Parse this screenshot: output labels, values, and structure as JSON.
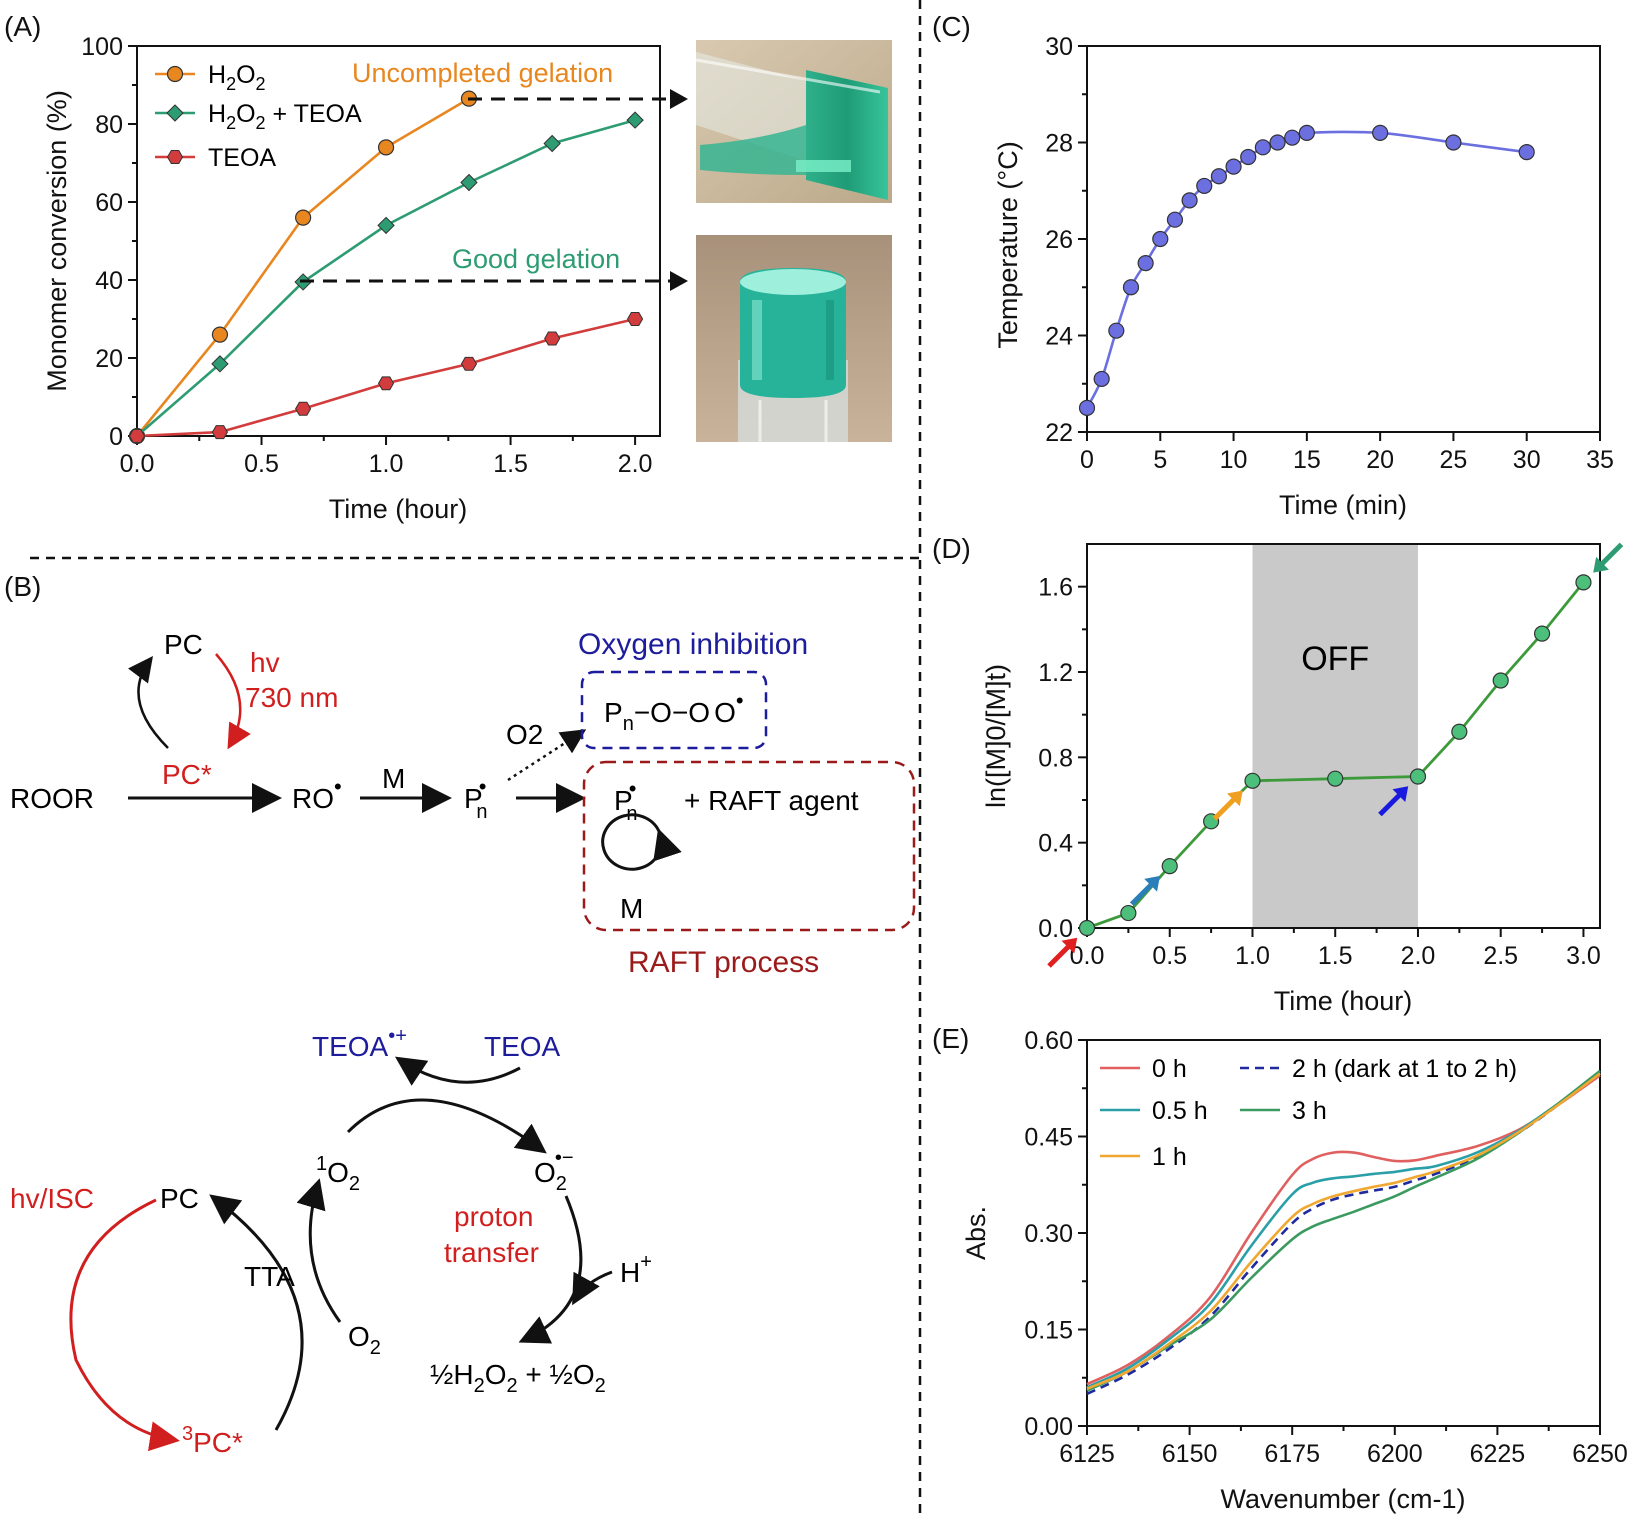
{
  "panels": {
    "A": "(A)",
    "B": "(B)",
    "C": "(C)",
    "D": "(D)",
    "E": "(E)"
  },
  "colors": {
    "orange": "#E8861F",
    "green": "#2E9C73",
    "red": "#D23C3C",
    "blue": "#6B6FE0",
    "dgreen": "#3C9A3A",
    "dblue": "#1F2A9E",
    "darkred": "#9B1B1B",
    "schemeRed": "#D11F1F",
    "schemeBlue": "#1C1C9C"
  },
  "chart_data": [
    {
      "panel": "A",
      "type": "line",
      "xlabel": "Time (hour)",
      "ylabel": "Monomer conversion (%)",
      "xlim": [
        0,
        2.1
      ],
      "ylim": [
        0,
        100
      ],
      "xticks": [
        "0.0",
        "0.5",
        "1.0",
        "1.5",
        "2.0"
      ],
      "yticks": [
        "0",
        "20",
        "40",
        "60",
        "80",
        "100"
      ],
      "legend_position": "top-left",
      "series": [
        {
          "name": "H2O2",
          "color": "#E8861F",
          "marker": "circle",
          "x": [
            0,
            0.333,
            0.667,
            1.0,
            1.333
          ],
          "y": [
            0,
            26,
            56,
            74,
            86.5
          ]
        },
        {
          "name": "H2O2 + TEOA",
          "color": "#2E9C73",
          "marker": "diamond",
          "x": [
            0,
            0.333,
            0.667,
            1.0,
            1.333,
            1.667,
            2.0
          ],
          "y": [
            0,
            18.5,
            39.5,
            54,
            65,
            75,
            81
          ]
        },
        {
          "name": "TEOA",
          "color": "#D23C3C",
          "marker": "hexagon",
          "x": [
            0,
            0.333,
            0.667,
            1.0,
            1.333,
            1.667,
            2.0
          ],
          "y": [
            0,
            1,
            7,
            13.5,
            18.5,
            25,
            30
          ]
        }
      ],
      "annotations": {
        "uncompleted": "Uncompleted gelation",
        "good": "Good gelation"
      }
    },
    {
      "panel": "C",
      "type": "line",
      "xlabel": "Time (min)",
      "ylabel": "Temperature (°C)",
      "xlim": [
        0,
        35
      ],
      "ylim": [
        22,
        30
      ],
      "xticks": [
        "0",
        "5",
        "10",
        "15",
        "20",
        "25",
        "30",
        "35"
      ],
      "yticks": [
        "22",
        "24",
        "26",
        "28",
        "30"
      ],
      "series": [
        {
          "color": "#6B6FE0",
          "x": [
            0,
            1,
            2,
            3,
            4,
            5,
            6,
            7,
            8,
            9,
            10,
            11,
            12,
            13,
            14,
            15,
            20,
            25,
            30
          ],
          "y": [
            22.5,
            23.1,
            24.1,
            25.0,
            25.5,
            26.0,
            26.4,
            26.8,
            27.1,
            27.3,
            27.5,
            27.7,
            27.9,
            28.0,
            28.1,
            28.2,
            28.2,
            28.0,
            27.8
          ]
        }
      ]
    },
    {
      "panel": "D",
      "type": "line",
      "xlabel": "Time (hour)",
      "ylabel": "ln([M]0/[M]t)",
      "xlim": [
        0,
        3.1
      ],
      "ylim": [
        0,
        1.8
      ],
      "xticks": [
        "0.0",
        "0.5",
        "1.0",
        "1.5",
        "2.0",
        "2.5",
        "3.0"
      ],
      "yticks": [
        "0.0",
        "0.4",
        "0.8",
        "1.2",
        "1.6"
      ],
      "off_region": [
        1.0,
        2.0
      ],
      "off_label": "OFF",
      "series": [
        {
          "color": "#3C9A3A",
          "x": [
            0,
            0.25,
            0.5,
            0.75,
            1.0,
            1.5,
            2.0,
            2.25,
            2.5,
            2.75,
            3.0
          ],
          "y": [
            0,
            0.07,
            0.29,
            0.5,
            0.69,
            0.7,
            0.71,
            0.92,
            1.16,
            1.38,
            1.62
          ]
        }
      ],
      "arrows": [
        {
          "x": 0.0,
          "y": 0.0,
          "color": "#E02020"
        },
        {
          "x": 0.5,
          "y": 0.29,
          "color": "#2A7FB8"
        },
        {
          "x": 1.0,
          "y": 0.69,
          "color": "#F0A020"
        },
        {
          "x": 2.0,
          "y": 0.71,
          "color": "#1A1ADF"
        },
        {
          "x": 3.0,
          "y": 1.62,
          "color": "#2E9C73"
        }
      ]
    },
    {
      "panel": "E",
      "type": "line",
      "xlabel": "Wavenumber (cm-1)",
      "ylabel": "Abs.",
      "xlim": [
        6125,
        6250
      ],
      "ylim": [
        0,
        0.6
      ],
      "xticks": [
        "6125",
        "6150",
        "6175",
        "6200",
        "6225",
        "6250"
      ],
      "yticks": [
        "0.00",
        "0.15",
        "0.30",
        "0.45",
        "0.60"
      ],
      "legend_position": "top-left",
      "series": [
        {
          "name": "0 h",
          "color": "#E06060",
          "dash": false,
          "x": [
            6125,
            6135,
            6145,
            6155,
            6165,
            6175,
            6180,
            6185,
            6190,
            6195,
            6200,
            6205,
            6210,
            6220,
            6230,
            6240,
            6250
          ],
          "y": [
            0.065,
            0.095,
            0.14,
            0.2,
            0.3,
            0.39,
            0.415,
            0.425,
            0.425,
            0.418,
            0.412,
            0.413,
            0.42,
            0.435,
            0.46,
            0.5,
            0.545
          ]
        },
        {
          "name": "2 h (dark at 1 to 2 h)",
          "color": "#1F2A9E",
          "dash": true,
          "x": [
            6125,
            6135,
            6145,
            6155,
            6165,
            6175,
            6180,
            6185,
            6190,
            6195,
            6200,
            6205,
            6210,
            6220,
            6230,
            6240,
            6250
          ],
          "y": [
            0.05,
            0.08,
            0.12,
            0.17,
            0.245,
            0.315,
            0.338,
            0.352,
            0.36,
            0.366,
            0.372,
            0.382,
            0.392,
            0.418,
            0.455,
            0.5,
            0.55
          ]
        },
        {
          "name": "0.5 h",
          "color": "#2A9FA8",
          "dash": false,
          "x": [
            6125,
            6135,
            6145,
            6155,
            6165,
            6175,
            6180,
            6185,
            6190,
            6195,
            6200,
            6205,
            6210,
            6220,
            6230,
            6240,
            6250
          ],
          "y": [
            0.06,
            0.09,
            0.135,
            0.19,
            0.28,
            0.36,
            0.378,
            0.385,
            0.388,
            0.392,
            0.395,
            0.4,
            0.404,
            0.425,
            0.458,
            0.502,
            0.548
          ]
        },
        {
          "name": "3 h",
          "color": "#3A9A60",
          "dash": false,
          "x": [
            6125,
            6135,
            6145,
            6155,
            6165,
            6175,
            6180,
            6185,
            6190,
            6195,
            6200,
            6205,
            6210,
            6220,
            6230,
            6240,
            6250
          ],
          "y": [
            0.055,
            0.085,
            0.125,
            0.165,
            0.23,
            0.29,
            0.31,
            0.322,
            0.333,
            0.345,
            0.357,
            0.372,
            0.386,
            0.415,
            0.455,
            0.502,
            0.552
          ]
        },
        {
          "name": "1 h",
          "color": "#F0A830",
          "dash": false,
          "x": [
            6125,
            6135,
            6145,
            6155,
            6165,
            6175,
            6180,
            6185,
            6190,
            6195,
            6200,
            6205,
            6210,
            6220,
            6230,
            6240,
            6250
          ],
          "y": [
            0.058,
            0.085,
            0.128,
            0.178,
            0.255,
            0.325,
            0.345,
            0.357,
            0.365,
            0.372,
            0.378,
            0.387,
            0.396,
            0.42,
            0.456,
            0.5,
            0.548
          ]
        }
      ]
    }
  ],
  "scheme_top": {
    "pc": "PC",
    "hv": "hv",
    "nm": "730 nm",
    "pcstar": "PC*",
    "roor": "ROOR",
    "ro": "RO",
    "m": "M",
    "o2": "O2",
    "pn": "P",
    "sub_n": "n",
    "peroxy": "−O−O",
    "o": "O",
    "oxygen_inhibition": "Oxygen inhibition",
    "raft_agent": "+  RAFT agent",
    "raft_process": "RAFT process"
  },
  "scheme_bottom": {
    "teoa_rad": "TEOA",
    "teoa_sup": "•+",
    "teoa": "TEOA",
    "hv_isc": "hv/ISC",
    "pc": "PC",
    "singlet": "O",
    "o2minus_sup": "•−",
    "proton": "proton",
    "transfer": "transfer",
    "hplus": "H",
    "plus_sup": "+",
    "tta": "TTA",
    "o2": "O",
    "products_a": "½H",
    "products_b": "O",
    "products_c": " + ½O",
    "triplet_pc": "PC*",
    "sup1": "1",
    "sup3": "3",
    "sub2": "2"
  }
}
